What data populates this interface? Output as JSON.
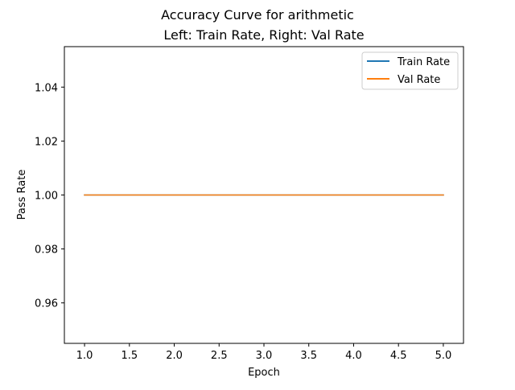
{
  "chart_data": {
    "type": "line",
    "title": "Accuracy Curve for arithmetic",
    "subtitle": "Left: Train Rate, Right: Val Rate",
    "xlabel": "Epoch",
    "ylabel": "Pass Rate",
    "xlim": [
      0.775,
      5.225
    ],
    "ylim": [
      0.945,
      1.055
    ],
    "x_ticks": [
      1.0,
      1.5,
      2.0,
      2.5,
      3.0,
      3.5,
      4.0,
      4.5,
      5.0
    ],
    "x_tick_labels": [
      "1.0",
      "1.5",
      "2.0",
      "2.5",
      "3.0",
      "3.5",
      "4.0",
      "4.5",
      "5.0"
    ],
    "y_ticks": [
      0.96,
      0.98,
      1.0,
      1.02,
      1.04
    ],
    "y_tick_labels": [
      "0.96",
      "0.98",
      "1.00",
      "1.02",
      "1.04"
    ],
    "grid": false,
    "legend_position": "top-right",
    "series": [
      {
        "name": "Train Rate",
        "color": "#1f77b4",
        "x": [
          1,
          2,
          3,
          4,
          5
        ],
        "y": [
          1.0,
          1.0,
          1.0,
          1.0,
          1.0
        ]
      },
      {
        "name": "Val Rate",
        "color": "#ff7f0e",
        "x": [
          1,
          2,
          3,
          4,
          5
        ],
        "y": [
          1.0,
          1.0,
          1.0,
          1.0,
          1.0
        ]
      }
    ]
  }
}
